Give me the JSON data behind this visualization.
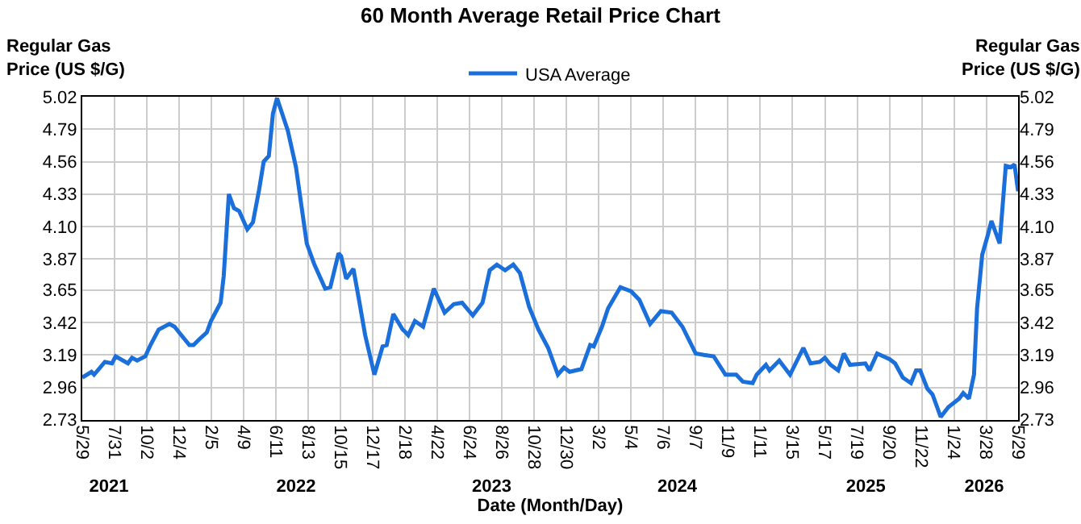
{
  "chart_data": {
    "type": "line",
    "title": "60 Month Average Retail Price Chart",
    "xlabel": "Date (Month/Day)",
    "ylabel": "Regular Gas Price (US $/G)",
    "y2label": "Regular Gas Price (US $/G)",
    "legend": "top",
    "grid": true,
    "marker": "none",
    "line_style": "solid",
    "xlim": [
      "2021-05-29",
      "2026-05-29"
    ],
    "xticks": [
      {
        "value": "2021-05-29",
        "label": "5/29"
      },
      {
        "value": "2021-07-31",
        "label": "7/31"
      },
      {
        "value": "2021-10-02",
        "label": "10/2"
      },
      {
        "value": "2021-12-04",
        "label": "12/4"
      },
      {
        "value": "2022-02-05",
        "label": "2/5"
      },
      {
        "value": "2022-04-09",
        "label": "4/9"
      },
      {
        "value": "2022-06-11",
        "label": "6/11"
      },
      {
        "value": "2022-08-13",
        "label": "8/13"
      },
      {
        "value": "2022-10-15",
        "label": "10/15"
      },
      {
        "value": "2022-12-17",
        "label": "12/17"
      },
      {
        "value": "2023-02-18",
        "label": "2/18"
      },
      {
        "value": "2023-04-22",
        "label": "4/22"
      },
      {
        "value": "2023-06-24",
        "label": "6/24"
      },
      {
        "value": "2023-08-26",
        "label": "8/26"
      },
      {
        "value": "2023-10-28",
        "label": "10/28"
      },
      {
        "value": "2023-12-30",
        "label": "12/30"
      },
      {
        "value": "2024-03-02",
        "label": "3/2"
      },
      {
        "value": "2024-05-04",
        "label": "5/4"
      },
      {
        "value": "2024-07-06",
        "label": "7/6"
      },
      {
        "value": "2024-09-07",
        "label": "9/7"
      },
      {
        "value": "2024-11-09",
        "label": "11/9"
      },
      {
        "value": "2025-01-11",
        "label": "1/11"
      },
      {
        "value": "2025-03-15",
        "label": "3/15"
      },
      {
        "value": "2025-05-17",
        "label": "5/17"
      },
      {
        "value": "2025-07-19",
        "label": "7/19"
      },
      {
        "value": "2025-09-20",
        "label": "9/20"
      },
      {
        "value": "2025-11-22",
        "label": "11/22"
      },
      {
        "value": "2026-01-24",
        "label": "1/24"
      },
      {
        "value": "2026-03-28",
        "label": "3/28"
      },
      {
        "value": "2026-05-29",
        "label": "5/29"
      }
    ],
    "x2lim": [
      "2021-05-29",
      "2026-05-29"
    ],
    "x2ticks": [
      {
        "value": "2021-07-20",
        "label": "2021"
      },
      {
        "value": "2022-07-20",
        "label": "2022"
      },
      {
        "value": "2023-08-06",
        "label": "2023"
      },
      {
        "value": "2024-08-02",
        "label": "2024"
      },
      {
        "value": "2025-08-05",
        "label": "2025"
      },
      {
        "value": "2026-03-24",
        "label": "2026"
      }
    ],
    "ylim": [
      2.73,
      5.02
    ],
    "yticks": [
      2.73,
      2.96,
      3.19,
      3.42,
      3.65,
      3.87,
      {
        "value": 4.1,
        "label": "4.10"
      },
      4.33,
      4.56,
      4.79,
      5.02
    ],
    "y2lim": [
      2.73,
      5.02
    ],
    "y2ticks": [
      2.73,
      2.96,
      3.19,
      3.42,
      3.65,
      3.87,
      {
        "value": 4.1,
        "label": "4.10"
      },
      4.33,
      4.56,
      4.79,
      5.02
    ],
    "series": [
      {
        "name": "USA Average",
        "color": "#1a6fdb",
        "x": [
          "2021-05-29",
          "2021-06-16",
          "2021-06-21",
          "2021-07-12",
          "2021-07-26",
          "2021-08-02",
          "2021-08-26",
          "2021-09-03",
          "2021-09-13",
          "2021-09-29",
          "2021-10-09",
          "2021-10-25",
          "2021-11-15",
          "2021-11-25",
          "2021-12-06",
          "2021-12-24",
          "2022-01-01",
          "2022-01-12",
          "2022-01-27",
          "2022-02-04",
          "2022-02-23",
          "2022-03-01",
          "2022-03-11",
          "2022-03-21",
          "2022-03-31",
          "2022-04-16",
          "2022-04-27",
          "2022-05-09",
          "2022-05-18",
          "2022-05-28",
          "2022-06-05",
          "2022-06-13",
          "2022-07-04",
          "2022-07-20",
          "2022-08-10",
          "2022-08-25",
          "2022-09-15",
          "2022-09-25",
          "2022-10-11",
          "2022-10-16",
          "2022-10-26",
          "2022-11-09",
          "2022-11-19",
          "2022-12-02",
          "2022-12-20",
          "2023-01-05",
          "2023-01-13",
          "2023-01-26",
          "2023-02-13",
          "2023-02-19",
          "2023-02-24",
          "2023-03-09",
          "2023-03-25",
          "2023-04-15",
          "2023-05-06",
          "2023-05-24",
          "2023-06-09",
          "2023-06-30",
          "2023-07-19",
          "2023-08-02",
          "2023-08-16",
          "2023-09-01",
          "2023-09-17",
          "2023-09-30",
          "2023-10-18",
          "2023-11-05",
          "2023-11-24",
          "2023-12-13",
          "2023-12-25",
          "2024-01-05",
          "2024-01-28",
          "2024-02-14",
          "2024-02-21",
          "2024-03-08",
          "2024-03-20",
          "2024-04-13",
          "2024-05-04",
          "2024-05-20",
          "2024-06-10",
          "2024-07-01",
          "2024-07-22",
          "2024-08-12",
          "2024-09-07",
          "2024-09-23",
          "2024-10-12",
          "2024-11-04",
          "2024-11-25",
          "2024-12-08",
          "2024-12-27",
          "2025-01-04",
          "2025-01-22",
          "2025-01-29",
          "2025-02-17",
          "2025-03-10",
          "2025-04-05",
          "2025-04-19",
          "2025-05-07",
          "2025-05-17",
          "2025-05-28",
          "2025-06-12",
          "2025-06-23",
          "2025-07-05",
          "2025-08-04",
          "2025-08-12",
          "2025-08-27",
          "2025-09-20",
          "2025-10-01",
          "2025-10-16",
          "2025-11-01",
          "2025-11-11",
          "2025-11-19",
          "2025-12-03",
          "2025-12-13",
          "2025-12-29",
          "2026-01-13",
          "2026-02-03",
          "2026-02-11",
          "2026-02-22",
          "2026-03-04",
          "2026-03-10",
          "2026-03-20",
          "2026-03-31",
          "2026-04-07",
          "2026-04-23",
          "2026-05-05",
          "2026-05-15",
          "2026-05-22",
          "2026-05-29"
        ],
        "values": [
          3.03,
          3.07,
          3.05,
          3.14,
          3.13,
          3.18,
          3.13,
          3.17,
          3.15,
          3.18,
          3.26,
          3.37,
          3.41,
          3.39,
          3.34,
          3.26,
          3.26,
          3.3,
          3.35,
          3.43,
          3.56,
          3.75,
          4.33,
          4.23,
          4.21,
          4.08,
          4.13,
          4.36,
          4.56,
          4.6,
          4.9,
          5.01,
          4.78,
          4.52,
          3.98,
          3.83,
          3.66,
          3.67,
          3.91,
          3.89,
          3.73,
          3.8,
          3.6,
          3.33,
          3.05,
          3.25,
          3.26,
          3.48,
          3.37,
          3.35,
          3.33,
          3.43,
          3.39,
          3.66,
          3.49,
          3.55,
          3.56,
          3.47,
          3.56,
          3.79,
          3.83,
          3.79,
          3.83,
          3.77,
          3.53,
          3.37,
          3.24,
          3.05,
          3.1,
          3.07,
          3.09,
          3.26,
          3.25,
          3.39,
          3.52,
          3.67,
          3.64,
          3.58,
          3.41,
          3.5,
          3.49,
          3.39,
          3.2,
          3.19,
          3.18,
          3.05,
          3.05,
          3.0,
          2.99,
          3.05,
          3.12,
          3.08,
          3.15,
          3.05,
          3.24,
          3.13,
          3.14,
          3.17,
          3.12,
          3.08,
          3.2,
          3.12,
          3.13,
          3.08,
          3.2,
          3.16,
          3.13,
          3.03,
          2.99,
          3.08,
          3.08,
          2.95,
          2.91,
          2.75,
          2.82,
          2.88,
          2.92,
          2.88,
          3.05,
          3.52,
          3.9,
          4.04,
          4.14,
          3.98,
          4.53,
          4.52,
          4.54,
          4.35
        ]
      }
    ]
  }
}
